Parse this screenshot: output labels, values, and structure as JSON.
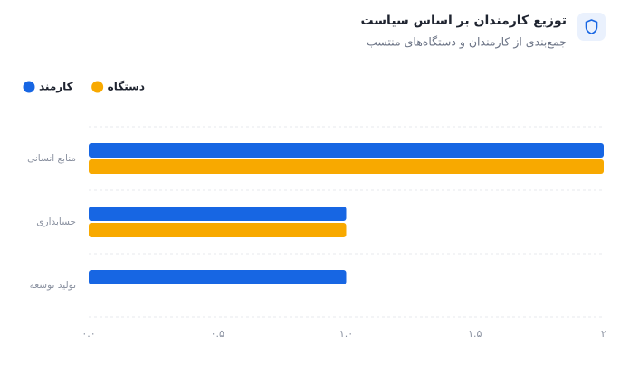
{
  "chart_data": {
    "type": "bar",
    "orientation": "horizontal",
    "title": "توزیع کارمندان بر اساس سیاست",
    "subtitle": "جمع‌بندی از کارمندان و دستگاه‌های منتسب",
    "categories": [
      "منابع انسانی",
      "حسابداری",
      "تولید توسعه"
    ],
    "series": [
      {
        "name": "کارمند",
        "color": "#1766e3",
        "values": [
          2,
          1,
          1
        ]
      },
      {
        "name": "دستگاه",
        "color": "#f8a900",
        "values": [
          2,
          1,
          0
        ]
      }
    ],
    "xlim": [
      0,
      2
    ],
    "xticks": [
      {
        "value": 0,
        "label": "۰.۰"
      },
      {
        "value": 0.5,
        "label": "۰.۵"
      },
      {
        "value": 1,
        "label": "۱.۰"
      },
      {
        "value": 1.5,
        "label": "۱.۵"
      },
      {
        "value": 2,
        "label": "۲"
      }
    ],
    "grid": true,
    "legend": "top-left"
  }
}
